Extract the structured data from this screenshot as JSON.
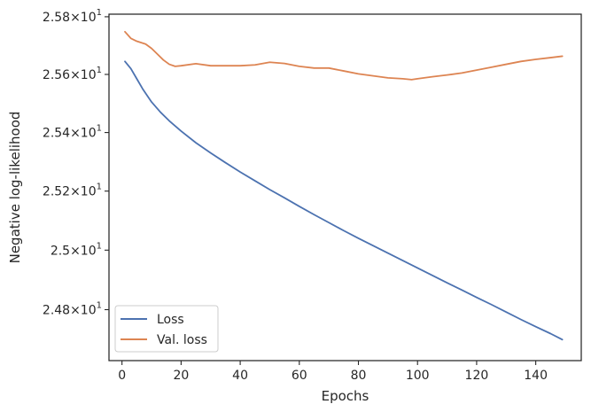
{
  "chart_data": {
    "type": "line",
    "xlabel": "Epochs",
    "ylabel": "Negative log-likelihood",
    "xlim": [
      -4.4,
      155.4
    ],
    "ylim": [
      24.63,
      25.809
    ],
    "yscale": "log",
    "grid": false,
    "legend_placement": "lower-left",
    "x_ticks": [
      0,
      20,
      40,
      60,
      80,
      100,
      120,
      140
    ],
    "x_tick_labels": [
      "0",
      "20",
      "40",
      "60",
      "80",
      "100",
      "120",
      "140"
    ],
    "y_ticks": [
      {
        "value": 24.8,
        "mantissa": "2.48",
        "base": "10",
        "exponent": "1"
      },
      {
        "value": 25.0,
        "mantissa": "2.5",
        "base": "10",
        "exponent": "1"
      },
      {
        "value": 25.2,
        "mantissa": "2.52",
        "base": "10",
        "exponent": "1"
      },
      {
        "value": 25.4,
        "mantissa": "2.54",
        "base": "10",
        "exponent": "1"
      },
      {
        "value": 25.6,
        "mantissa": "2.56",
        "base": "10",
        "exponent": "1"
      },
      {
        "value": 25.8,
        "mantissa": "2.58",
        "base": "10",
        "exponent": "1"
      }
    ],
    "series": [
      {
        "name": "Loss",
        "color": "#4c72b0",
        "points": [
          [
            1,
            25.645
          ],
          [
            3,
            25.62
          ],
          [
            5,
            25.585
          ],
          [
            7,
            25.55
          ],
          [
            10,
            25.505
          ],
          [
            13,
            25.47
          ],
          [
            16,
            25.44
          ],
          [
            20,
            25.405
          ],
          [
            25,
            25.365
          ],
          [
            30,
            25.33
          ],
          [
            35,
            25.297
          ],
          [
            40,
            25.265
          ],
          [
            45,
            25.235
          ],
          [
            50,
            25.205
          ],
          [
            55,
            25.177
          ],
          [
            60,
            25.148
          ],
          [
            65,
            25.12
          ],
          [
            70,
            25.093
          ],
          [
            75,
            25.066
          ],
          [
            80,
            25.04
          ],
          [
            85,
            25.015
          ],
          [
            90,
            24.99
          ],
          [
            95,
            24.965
          ],
          [
            100,
            24.94
          ],
          [
            105,
            24.915
          ],
          [
            110,
            24.89
          ],
          [
            115,
            24.866
          ],
          [
            120,
            24.841
          ],
          [
            125,
            24.817
          ],
          [
            130,
            24.792
          ],
          [
            135,
            24.767
          ],
          [
            140,
            24.743
          ],
          [
            145,
            24.72
          ],
          [
            149,
            24.7
          ]
        ]
      },
      {
        "name": "Val. loss",
        "color": "#dd8452",
        "points": [
          [
            1,
            25.748
          ],
          [
            3,
            25.725
          ],
          [
            5,
            25.715
          ],
          [
            8,
            25.705
          ],
          [
            10,
            25.69
          ],
          [
            12,
            25.67
          ],
          [
            14,
            25.65
          ],
          [
            16,
            25.635
          ],
          [
            18,
            25.628
          ],
          [
            20,
            25.63
          ],
          [
            25,
            25.637
          ],
          [
            30,
            25.63
          ],
          [
            35,
            25.63
          ],
          [
            40,
            25.63
          ],
          [
            45,
            25.633
          ],
          [
            50,
            25.642
          ],
          [
            55,
            25.638
          ],
          [
            60,
            25.628
          ],
          [
            65,
            25.622
          ],
          [
            70,
            25.622
          ],
          [
            75,
            25.612
          ],
          [
            80,
            25.602
          ],
          [
            85,
            25.595
          ],
          [
            90,
            25.588
          ],
          [
            95,
            25.585
          ],
          [
            98,
            25.582
          ],
          [
            100,
            25.585
          ],
          [
            105,
            25.592
          ],
          [
            110,
            25.598
          ],
          [
            115,
            25.605
          ],
          [
            120,
            25.615
          ],
          [
            125,
            25.625
          ],
          [
            130,
            25.635
          ],
          [
            135,
            25.645
          ],
          [
            140,
            25.652
          ],
          [
            145,
            25.658
          ],
          [
            149,
            25.663
          ]
        ]
      }
    ]
  }
}
